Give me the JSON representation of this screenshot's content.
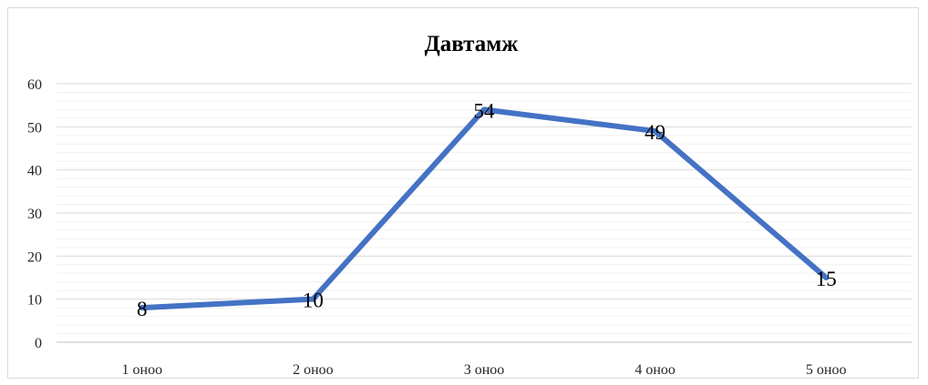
{
  "chart_data": {
    "type": "line",
    "title": "Давтамж",
    "xlabel": "",
    "ylabel": "",
    "categories": [
      "1 оноо",
      "2 оноо",
      "3 оноо",
      "4 оноо",
      "5 оноо"
    ],
    "series": [
      {
        "values": [
          8,
          10,
          54,
          49,
          15
        ]
      }
    ],
    "ylim": [
      0,
      60
    ],
    "yticks": [
      0,
      10,
      20,
      30,
      40,
      50,
      60
    ],
    "grid": true,
    "legend": "none",
    "line_color": "#4472c4"
  }
}
